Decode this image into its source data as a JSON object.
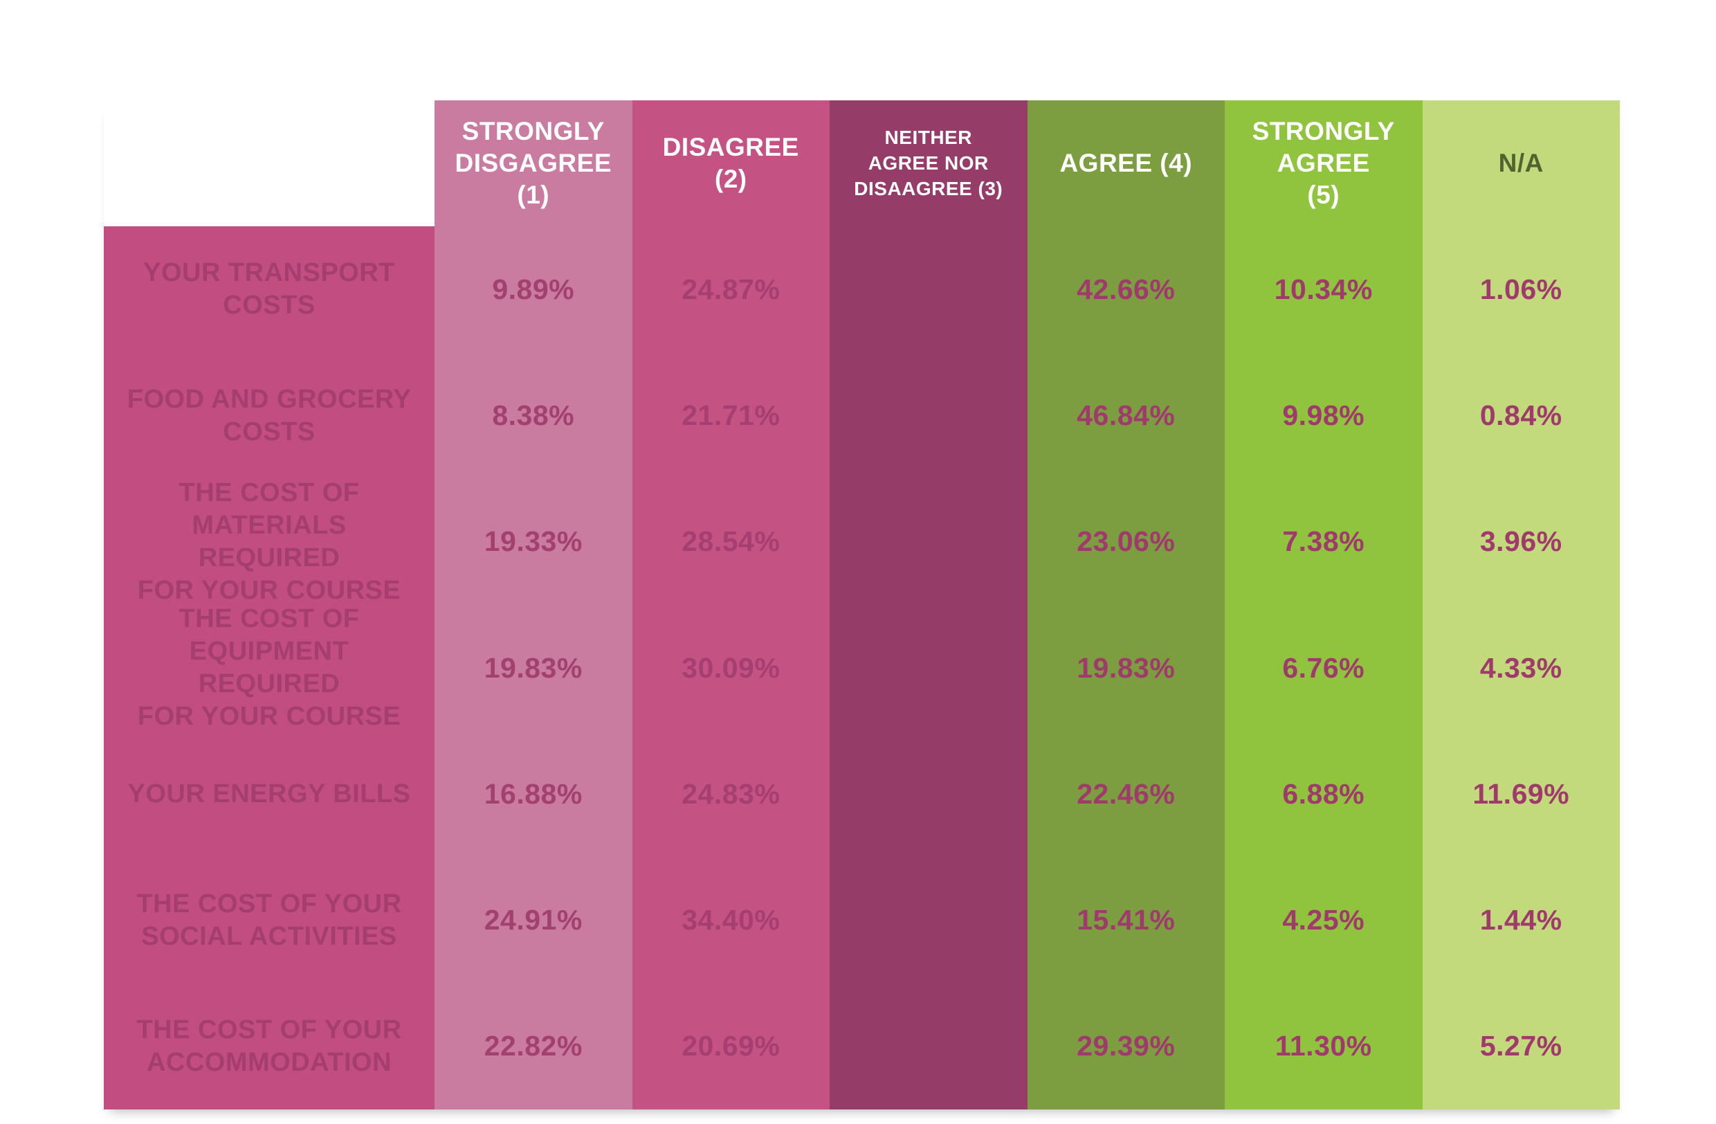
{
  "table": {
    "columns": [
      {
        "id": "strongly-disagree",
        "label": "STRONGLY\nDISGAGREE\n(1)"
      },
      {
        "id": "disagree",
        "label": "DISAGREE\n(2)"
      },
      {
        "id": "neither",
        "label": "NEITHER\nAGREE NOR\nDISAAGREE (3)"
      },
      {
        "id": "agree",
        "label": "AGREE (4)"
      },
      {
        "id": "strongly-agree",
        "label": "STRONGLY\nAGREE\n(5)"
      },
      {
        "id": "na",
        "label": "N/A"
      }
    ],
    "rows": [
      {
        "label": "YOUR TRANSPORT\nCOSTS",
        "values": [
          "9.89%",
          "24.87%",
          "",
          "42.66%",
          "10.34%",
          "1.06%"
        ]
      },
      {
        "label": "FOOD AND GROCERY\nCOSTS",
        "values": [
          "8.38%",
          "21.71%",
          "",
          "46.84%",
          "9.98%",
          "0.84%"
        ]
      },
      {
        "label": "THE COST OF\nMATERIALS REQUIRED\nFOR YOUR COURSE",
        "values": [
          "19.33%",
          "28.54%",
          "",
          "23.06%",
          "7.38%",
          "3.96%"
        ]
      },
      {
        "label": "THE COST OF\nEQUIPMENT REQUIRED\nFOR YOUR COURSE",
        "values": [
          "19.83%",
          "30.09%",
          "",
          "19.83%",
          "6.76%",
          "4.33%"
        ]
      },
      {
        "label": "YOUR ENERGY BILLS",
        "values": [
          "16.88%",
          "24.83%",
          "",
          "22.46%",
          "6.88%",
          "11.69%"
        ]
      },
      {
        "label": "THE COST OF YOUR\nSOCIAL ACTIVITIES",
        "values": [
          "24.91%",
          "34.40%",
          "",
          "15.41%",
          "4.25%",
          "1.44%"
        ]
      },
      {
        "label": "THE COST OF YOUR\nACCOMMODATION",
        "values": [
          "22.82%",
          "20.69%",
          "",
          "29.39%",
          "11.30%",
          "5.27%"
        ]
      }
    ]
  },
  "colors": {
    "row_label_column": "#c24d80",
    "strongly_disagree_column": "#ca7ba0",
    "disagree_column": "#c45282",
    "neither_column": "#953c68",
    "agree_column": "#7c9e40",
    "strongly_agree_column": "#90c33e",
    "na_column": "#c3da7c",
    "header_text": "#ffffff",
    "na_header_text": "#4f6430",
    "row_label_text": "#a33e6f",
    "value_text": "#a03a6c"
  },
  "chart_data": {
    "type": "table",
    "title": "",
    "categories": [
      "YOUR TRANSPORT COSTS",
      "FOOD AND GROCERY COSTS",
      "THE COST OF MATERIALS REQUIRED FOR YOUR COURSE",
      "THE COST OF EQUIPMENT REQUIRED FOR YOUR COURSE",
      "YOUR ENERGY BILLS",
      "THE COST OF YOUR SOCIAL ACTIVITIES",
      "THE COST OF YOUR ACCOMMODATION"
    ],
    "series": [
      {
        "name": "STRONGLY DISGAGREE (1)",
        "values": [
          9.89,
          8.38,
          19.33,
          19.83,
          16.88,
          24.91,
          22.82
        ]
      },
      {
        "name": "DISAGREE (2)",
        "values": [
          24.87,
          21.71,
          28.54,
          30.09,
          24.83,
          34.4,
          20.69
        ]
      },
      {
        "name": "NEITHER AGREE NOR DISAAGREE (3)",
        "values": [
          null,
          null,
          null,
          null,
          null,
          null,
          null
        ]
      },
      {
        "name": "AGREE (4)",
        "values": [
          42.66,
          46.84,
          23.06,
          19.83,
          22.46,
          15.41,
          29.39
        ]
      },
      {
        "name": "STRONGLY AGREE (5)",
        "values": [
          10.34,
          9.98,
          7.38,
          6.76,
          6.88,
          4.25,
          11.3
        ]
      },
      {
        "name": "N/A",
        "values": [
          1.06,
          0.84,
          3.96,
          4.33,
          11.69,
          1.44,
          5.27
        ]
      }
    ],
    "unit": "%",
    "notes": "Likert survey result matrix; values in NEITHER AGREE NOR DISAAGREE (3) column are not displayed in the graphic"
  }
}
